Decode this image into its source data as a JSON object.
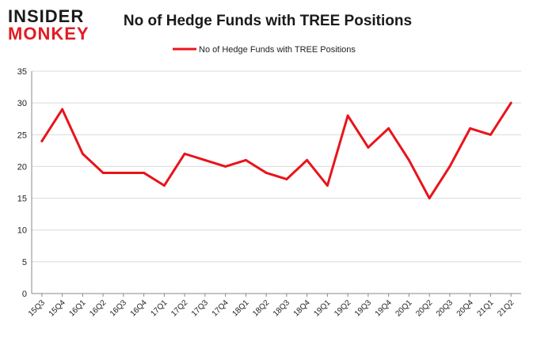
{
  "brand": {
    "line1": "INSIDER",
    "line2": "MONKEY",
    "color_dark": "#1a1a1a",
    "color_accent": "#e31b23"
  },
  "chart_data": {
    "type": "line",
    "title": "No of Hedge Funds with TREE Positions",
    "xlabel": "",
    "ylabel": "",
    "ylim": [
      0,
      35
    ],
    "yticks": [
      0,
      5,
      10,
      15,
      20,
      25,
      30,
      35
    ],
    "grid": true,
    "legend_position": "top-center",
    "categories": [
      "15Q3",
      "15Q4",
      "16Q1",
      "16Q2",
      "16Q3",
      "16Q4",
      "17Q1",
      "17Q2",
      "17Q3",
      "17Q4",
      "18Q1",
      "18Q2",
      "18Q3",
      "18Q4",
      "19Q1",
      "19Q2",
      "19Q3",
      "19Q4",
      "20Q1",
      "20Q2",
      "20Q3",
      "20Q4",
      "21Q1",
      "21Q2"
    ],
    "series": [
      {
        "name": "No of Hedge Funds with TREE Positions",
        "color": "#e8141b",
        "values": [
          24,
          29,
          22,
          19,
          19,
          19,
          17,
          22,
          21,
          20,
          21,
          19,
          18,
          21,
          17,
          28,
          23,
          26,
          21,
          15,
          20,
          26,
          25,
          30
        ]
      }
    ]
  }
}
